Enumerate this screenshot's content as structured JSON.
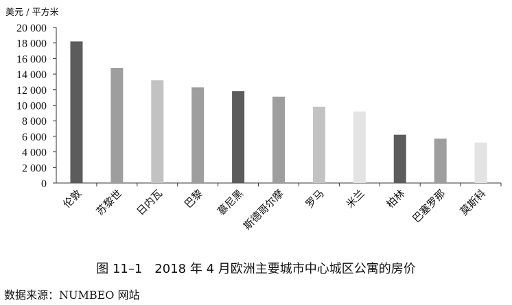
{
  "chart_data": {
    "type": "bar",
    "ylabel": "美元 / 平方米",
    "ylim": [
      0,
      20000
    ],
    "yticks": [
      "0",
      "2 000",
      "4 000",
      "6 000",
      "8 000",
      "10 000",
      "12 000",
      "14 000",
      "16 000",
      "18 000",
      "20 000"
    ],
    "categories": [
      "伦敦",
      "苏黎世",
      "日内瓦",
      "巴黎",
      "慕尼黑",
      "斯德哥尔摩",
      "罗马",
      "米兰",
      "柏林",
      "巴塞罗那",
      "莫斯科"
    ],
    "values": [
      18200,
      14800,
      13200,
      12300,
      11800,
      11100,
      9800,
      9200,
      6200,
      5700,
      5200
    ],
    "colors": [
      "#5c5c5c",
      "#9e9e9e",
      "#c2c2c2",
      "#9e9e9e",
      "#5c5c5c",
      "#9e9e9e",
      "#c2c2c2",
      "#e3e3e3",
      "#5c5c5c",
      "#9e9e9e",
      "#e3e3e3"
    ],
    "grid": false
  },
  "caption": "图 11–1　2018 年 4 月欧洲主要城市中心城区公寓的房价",
  "source": "数据来源：NUMBEO 网站"
}
